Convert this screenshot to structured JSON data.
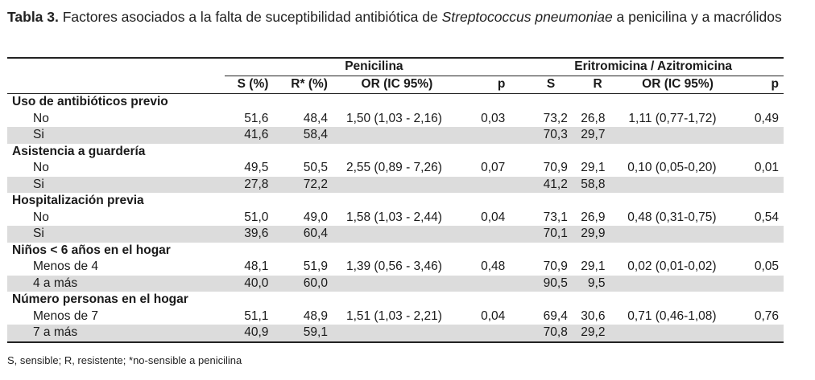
{
  "caption": {
    "label": "Tabla 3.",
    "text_before": " Factores asociados a la falta de suceptibilidad antibiótica de ",
    "italic": "Streptococcus pneumoniae",
    "text_after": " a penicilina y a macrólidos"
  },
  "header": {
    "group1": "Penicilina",
    "group2": "Eritromicina / Azitromicina",
    "cols": [
      "S (%)",
      "R* (%)",
      "OR (IC 95%)",
      "p",
      "S",
      "R",
      "OR (IC 95%)",
      "p"
    ]
  },
  "sections": [
    {
      "title": "Uso de antibióticos previo",
      "rows": [
        {
          "label": "No",
          "s": "51,6",
          "r": "48,4",
          "or": "1,50 (1,03 - 2,16)",
          "p": "0,03",
          "s2": "73,2",
          "r2": "26,8",
          "or2": "1,11 (0,77-1,72)",
          "p2": "0,49"
        },
        {
          "label": "Si",
          "s": "41,6",
          "r": "58,4",
          "or": "",
          "p": "",
          "s2": "70,3",
          "r2": "29,7",
          "or2": "",
          "p2": ""
        }
      ]
    },
    {
      "title": "Asistencia a guardería",
      "rows": [
        {
          "label": "No",
          "s": "49,5",
          "r": "50,5",
          "or": "2,55 (0,89 - 7,26)",
          "p": "0,07",
          "s2": "70,9",
          "r2": "29,1",
          "or2": "0,10 (0,05-0,20)",
          "p2": "0,01"
        },
        {
          "label": "Si",
          "s": "27,8",
          "r": "72,2",
          "or": "",
          "p": "",
          "s2": "41,2",
          "r2": "58,8",
          "or2": "",
          "p2": ""
        }
      ]
    },
    {
      "title": "Hospitalización previa",
      "rows": [
        {
          "label": "No",
          "s": "51,0",
          "r": "49,0",
          "or": "1,58 (1,03 - 2,44)",
          "p": "0,04",
          "s2": "73,1",
          "r2": "26,9",
          "or2": "0,48 (0,31-0,75)",
          "p2": "0,54"
        },
        {
          "label": "Si",
          "s": "39,6",
          "r": "60,4",
          "or": "",
          "p": "",
          "s2": "70,1",
          "r2": "29,9",
          "or2": "",
          "p2": ""
        }
      ]
    },
    {
      "title": "Niños < 6 años en el hogar",
      "rows": [
        {
          "label": "Menos de 4",
          "s": "48,1",
          "r": "51,9",
          "or": "1,39 (0,56 - 3,46)",
          "p": "0,48",
          "s2": "70,9",
          "r2": "29,1",
          "or2": "0,02 (0,01-0,02)",
          "p2": "0,05"
        },
        {
          "label": "4 a más",
          "s": "40,0",
          "r": "60,0",
          "or": "",
          "p": "",
          "s2": "90,5",
          "r2": "9,5",
          "or2": "",
          "p2": ""
        }
      ]
    },
    {
      "title": "Número personas en el hogar",
      "rows": [
        {
          "label": "Menos de 7",
          "s": "51,1",
          "r": "48,9",
          "or": "1,51 (1,03 - 2,21)",
          "p": "0,04",
          "s2": "69,4",
          "r2": "30,6",
          "or2": "0,71 (0,46-1,08)",
          "p2": "0,76"
        },
        {
          "label": "7 a más",
          "s": "40,9",
          "r": "59,1",
          "or": "",
          "p": "",
          "s2": "70,8",
          "r2": "29,2",
          "or2": "",
          "p2": ""
        }
      ]
    }
  ],
  "footnote": "S, sensible; R, resistente; *no-sensible a penicilina"
}
